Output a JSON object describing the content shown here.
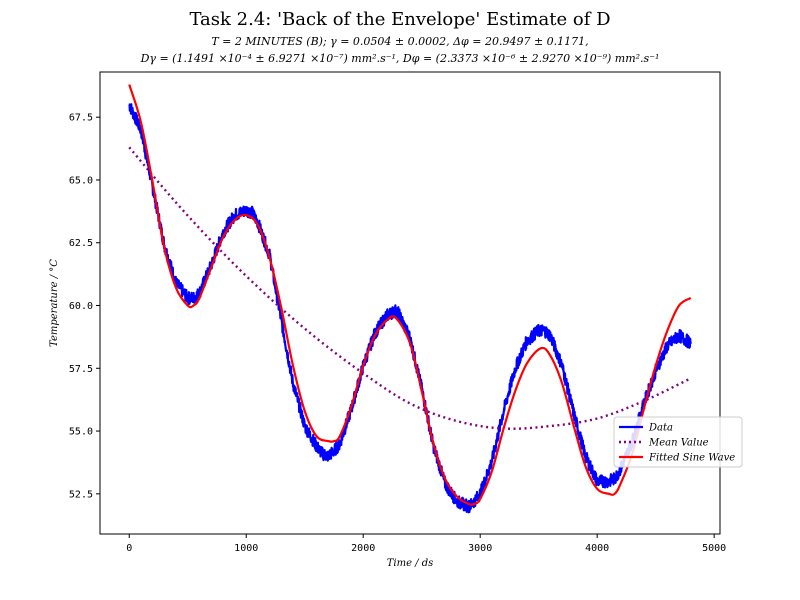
{
  "chart_data": {
    "type": "line",
    "title": "Task 2.4: 'Back of the Envelope' Estimate of D",
    "subtitle_line1": "T = 2 MINUTES (B); γ = 0.0504 ± 0.0002, Δφ = 20.9497 ± 0.1171,",
    "subtitle_line2": "Dγ = (1.1491 ×10⁻⁴ ± 6.9271 ×10⁻⁷) mm².s⁻¹, Dφ = (2.3373 ×10⁻⁶ ± 2.9270 ×10⁻⁹) mm².s⁻¹",
    "xlabel": "Time / ds",
    "ylabel": "Temperature / °C",
    "xlim": [
      -250,
      5050
    ],
    "ylim": [
      50.9,
      69.3
    ],
    "x_ticks": [
      0,
      1000,
      2000,
      3000,
      4000,
      5000
    ],
    "x_tick_labels": [
      "0",
      "1000",
      "2000",
      "3000",
      "4000",
      "5000"
    ],
    "y_ticks": [
      52.5,
      55.0,
      57.5,
      60.0,
      62.5,
      65.0,
      67.5
    ],
    "y_tick_labels": [
      "52.5",
      "55.0",
      "57.5",
      "60.0",
      "62.5",
      "65.0",
      "67.5"
    ],
    "grid": false,
    "legend_position": "center-right",
    "series": [
      {
        "name": "Data",
        "color": "#0000ff",
        "style": "solid-noisy",
        "x": [
          0,
          100,
          200,
          300,
          400,
          500,
          550,
          600,
          700,
          800,
          900,
          1000,
          1050,
          1100,
          1200,
          1300,
          1400,
          1500,
          1600,
          1650,
          1700,
          1750,
          1800,
          1900,
          2000,
          2100,
          2200,
          2280,
          2300,
          2400,
          2500,
          2600,
          2700,
          2800,
          2900,
          2930,
          3000,
          3100,
          3200,
          3300,
          3400,
          3500,
          3550,
          3600,
          3700,
          3800,
          3900,
          4000,
          4100,
          4150,
          4200,
          4300,
          4400,
          4500,
          4600,
          4700,
          4800
        ],
        "y": [
          68.0,
          67.0,
          64.7,
          62.4,
          60.9,
          60.3,
          60.3,
          60.5,
          61.6,
          62.9,
          63.6,
          63.8,
          63.7,
          63.3,
          62.0,
          59.4,
          56.9,
          55.2,
          54.4,
          54.1,
          54.0,
          54.2,
          54.5,
          55.9,
          57.6,
          58.9,
          59.6,
          59.8,
          59.7,
          58.7,
          56.7,
          54.4,
          52.9,
          52.2,
          52.0,
          52.1,
          52.5,
          53.8,
          55.8,
          57.5,
          58.6,
          59.0,
          59.0,
          58.8,
          57.6,
          55.7,
          54.0,
          53.0,
          53.0,
          53.1,
          53.5,
          54.6,
          56.1,
          57.4,
          58.4,
          58.8,
          58.5
        ]
      },
      {
        "name": "Mean Value",
        "color": "#800080",
        "style": "dotted",
        "x": [
          0,
          400,
          800,
          1200,
          1600,
          2000,
          2400,
          2800,
          3200,
          3600,
          4000,
          4400,
          4800
        ],
        "y": [
          66.3,
          64.1,
          62.1,
          60.3,
          58.7,
          57.3,
          56.1,
          55.4,
          55.1,
          55.2,
          55.5,
          56.2,
          57.1
        ]
      },
      {
        "name": "Fitted Sine Wave",
        "color": "#ff0000",
        "style": "solid",
        "x": [
          0,
          100,
          200,
          300,
          400,
          500,
          550,
          600,
          700,
          800,
          900,
          1000,
          1100,
          1200,
          1300,
          1400,
          1500,
          1600,
          1700,
          1750,
          1800,
          1900,
          2000,
          2100,
          2200,
          2280,
          2400,
          2500,
          2600,
          2700,
          2800,
          2900,
          2950,
          3000,
          3100,
          3200,
          3300,
          3400,
          3520,
          3600,
          3700,
          3800,
          3900,
          4000,
          4100,
          4150,
          4200,
          4300,
          4400,
          4500,
          4600,
          4700,
          4800
        ],
        "y": [
          68.8,
          67.3,
          64.9,
          62.3,
          60.7,
          60.0,
          60.0,
          60.3,
          61.5,
          62.7,
          63.4,
          63.6,
          63.2,
          61.9,
          59.9,
          57.6,
          55.8,
          54.8,
          54.6,
          54.6,
          54.8,
          56.0,
          57.6,
          58.8,
          59.4,
          59.5,
          58.5,
          56.6,
          54.5,
          53.1,
          52.4,
          52.1,
          52.1,
          52.3,
          53.4,
          55.1,
          56.6,
          57.7,
          58.3,
          58.0,
          56.9,
          55.2,
          53.6,
          52.7,
          52.5,
          52.5,
          52.9,
          54.1,
          55.9,
          57.6,
          59.0,
          60.0,
          60.3
        ]
      }
    ]
  }
}
